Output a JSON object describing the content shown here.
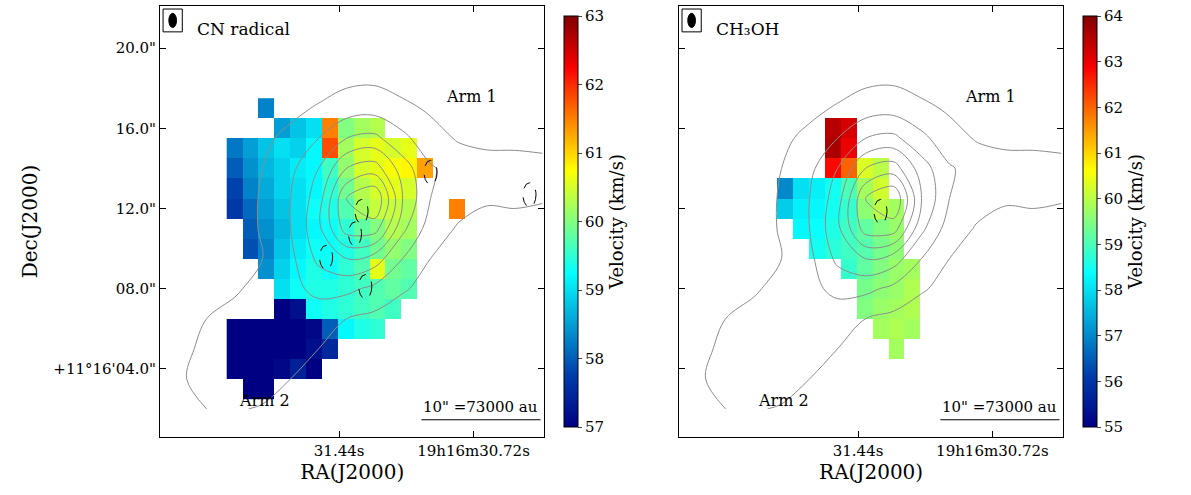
{
  "chart_data": [
    {
      "type": "heatmap",
      "title": "CN radical",
      "xlabel": "RA(J2000)",
      "ylabel": "Dec(J2000)",
      "xlim": [
        32.4,
        30.34
      ],
      "ylim": [
        0.6,
        22.1
      ],
      "xticks": [
        {
          "value": 31.44,
          "label": "31.44s"
        },
        {
          "value": 30.72,
          "label": "19h16m30.72s"
        }
      ],
      "yticks": [
        {
          "value": 4,
          "label": "+11°16'04.0\""
        },
        {
          "value": 8,
          "label": "08.0\""
        },
        {
          "value": 12,
          "label": "12.0\""
        },
        {
          "value": 16,
          "label": "16.0\""
        },
        {
          "value": 20,
          "label": "20.0\""
        }
      ],
      "x": [
        32.0,
        31.915,
        31.83,
        31.745,
        31.66,
        31.575,
        31.49,
        31.405,
        31.32,
        31.235,
        31.15,
        31.065,
        30.98,
        30.895,
        30.81,
        30.725
      ],
      "y": [
        3,
        4,
        5,
        6,
        7,
        8,
        9,
        10,
        11,
        12,
        13,
        14,
        15,
        16,
        17
      ],
      "values": [
        [
          null,
          56.9,
          57.0,
          null,
          null,
          null,
          null,
          null,
          null,
          null,
          null,
          null,
          null,
          null,
          null,
          null
        ],
        [
          56.9,
          56.8,
          56.9,
          57.1,
          57.4,
          57.0,
          null,
          null,
          null,
          null,
          null,
          null,
          null,
          null,
          null,
          null
        ],
        [
          57.0,
          56.9,
          56.8,
          56.8,
          56.9,
          57.2,
          57.5,
          null,
          null,
          null,
          null,
          null,
          null,
          null,
          null,
          null
        ],
        [
          57.0,
          56.9,
          56.8,
          56.9,
          57.0,
          57.1,
          58.0,
          59.2,
          59.4,
          59.5,
          null,
          null,
          null,
          null,
          null,
          null
        ],
        [
          null,
          null,
          null,
          57.0,
          57.2,
          59.3,
          59.4,
          59.5,
          59.6,
          59.7,
          59.6,
          null,
          null,
          null,
          null,
          null
        ],
        [
          null,
          null,
          null,
          59.0,
          59.3,
          59.4,
          59.4,
          59.5,
          59.6,
          59.7,
          59.8,
          59.7,
          null,
          null,
          null,
          null
        ],
        [
          null,
          null,
          58.4,
          58.9,
          59.2,
          59.4,
          59.3,
          59.5,
          59.7,
          60.6,
          59.9,
          59.8,
          null,
          null,
          null,
          null
        ],
        [
          null,
          57.9,
          58.3,
          58.8,
          59.1,
          59.3,
          59.3,
          59.4,
          59.6,
          59.9,
          60.1,
          60.0,
          null,
          null,
          null,
          null
        ],
        [
          null,
          58.0,
          58.4,
          58.7,
          59.0,
          59.2,
          59.3,
          59.5,
          59.8,
          60.0,
          60.3,
          60.2,
          null,
          null,
          null,
          null
        ],
        [
          57.7,
          58.1,
          58.5,
          58.8,
          59.0,
          59.3,
          59.4,
          59.7,
          60.2,
          60.4,
          60.4,
          60.3,
          null,
          null,
          61.5,
          null
        ],
        [
          57.8,
          58.3,
          58.6,
          58.9,
          59.0,
          59.2,
          59.5,
          59.9,
          60.3,
          60.5,
          60.6,
          60.5,
          null,
          null,
          null,
          null
        ],
        [
          58.0,
          58.4,
          58.7,
          58.9,
          59.1,
          59.2,
          59.6,
          60.1,
          60.5,
          60.6,
          60.7,
          60.8,
          61.3,
          null,
          null,
          null
        ],
        [
          58.2,
          58.5,
          58.8,
          59.0,
          58.9,
          59.2,
          61.8,
          60.2,
          60.5,
          60.6,
          60.5,
          60.6,
          null,
          null,
          null,
          null
        ],
        [
          null,
          null,
          null,
          58.5,
          58.8,
          59.0,
          61.5,
          60.0,
          60.2,
          60.3,
          null,
          null,
          null,
          null,
          null,
          null
        ],
        [
          null,
          null,
          58.3,
          null,
          null,
          null,
          null,
          null,
          null,
          null,
          null,
          null,
          null,
          null,
          null,
          null
        ]
      ],
      "colorbar": {
        "title": "Velocity (km/s)",
        "range": [
          57,
          63
        ],
        "ticks": [
          57,
          58,
          59,
          60,
          61,
          62,
          63
        ]
      },
      "cores": [
        {
          "x": 31.32,
          "y": 11.85
        },
        {
          "x": 31.355,
          "y": 10.73
        },
        {
          "x": 31.51,
          "y": 9.56
        },
        {
          "x": 31.3,
          "y": 8.1
        },
        {
          "x": 30.95,
          "y": 13.8
        },
        {
          "x": 30.42,
          "y": 12.68
        }
      ],
      "annotations": [
        "Arm 1",
        "Arm 2"
      ],
      "scale_bar": "10\" =73000 au"
    },
    {
      "type": "heatmap",
      "title": "CH₃OH",
      "xlabel": "RA(J2000)",
      "tick_labels": "x",
      "xlim": [
        32.4,
        30.34
      ],
      "ylim": [
        0.6,
        22.1
      ],
      "xticks": [
        {
          "value": 31.44,
          "label": "31.44s"
        },
        {
          "value": 30.72,
          "label": "19h16m30.72s"
        }
      ],
      "yticks": [
        4,
        8,
        12,
        16,
        20
      ],
      "x": [
        32.0,
        31.915,
        31.83,
        31.745,
        31.66,
        31.575,
        31.49,
        31.405,
        31.32,
        31.235,
        31.15,
        31.065,
        30.98,
        30.895,
        30.81,
        30.725
      ],
      "y": [
        3,
        4,
        5,
        6,
        7,
        8,
        9,
        10,
        11,
        12,
        13,
        14,
        15,
        16,
        17
      ],
      "values": [
        [
          null,
          null,
          null,
          null,
          null,
          null,
          null,
          null,
          null,
          null,
          null,
          null,
          null,
          null,
          null,
          null
        ],
        [
          null,
          null,
          null,
          null,
          null,
          null,
          null,
          null,
          null,
          null,
          null,
          null,
          null,
          null,
          null,
          null
        ],
        [
          null,
          null,
          null,
          null,
          null,
          null,
          null,
          null,
          null,
          59.8,
          null,
          null,
          null,
          null,
          null,
          null
        ],
        [
          null,
          null,
          null,
          null,
          null,
          null,
          null,
          null,
          59.8,
          59.9,
          59.8,
          null,
          null,
          null,
          null,
          null
        ],
        [
          null,
          null,
          null,
          null,
          null,
          null,
          null,
          59.5,
          59.7,
          59.8,
          59.9,
          null,
          null,
          null,
          null,
          null
        ],
        [
          null,
          null,
          null,
          null,
          null,
          null,
          null,
          59.4,
          59.6,
          59.7,
          59.9,
          null,
          null,
          null,
          null,
          null
        ],
        [
          null,
          null,
          null,
          null,
          null,
          null,
          58.8,
          59.2,
          59.5,
          59.7,
          59.8,
          null,
          null,
          null,
          null,
          null
        ],
        [
          null,
          null,
          null,
          null,
          58.5,
          58.7,
          58.9,
          59.1,
          59.4,
          59.6,
          null,
          null,
          null,
          null,
          null,
          null
        ],
        [
          null,
          null,
          null,
          58.3,
          58.4,
          58.6,
          58.9,
          59.2,
          59.5,
          59.7,
          null,
          null,
          null,
          null,
          null,
          null
        ],
        [
          null,
          null,
          57.8,
          58.2,
          58.3,
          58.5,
          58.8,
          59.6,
          60.0,
          59.8,
          null,
          null,
          null,
          null,
          null,
          null
        ],
        [
          null,
          null,
          57.0,
          58.0,
          58.2,
          58.5,
          59.0,
          59.8,
          60.2,
          null,
          null,
          null,
          null,
          null,
          null,
          null
        ],
        [
          null,
          null,
          null,
          null,
          null,
          62.8,
          62.0,
          60.3,
          60.0,
          null,
          null,
          null,
          null,
          null,
          null,
          null
        ],
        [
          null,
          null,
          null,
          null,
          null,
          63.6,
          63.0,
          null,
          null,
          null,
          null,
          null,
          null,
          null,
          null,
          null
        ],
        [
          null,
          null,
          null,
          null,
          null,
          63.5,
          63.2,
          null,
          null,
          null,
          null,
          null,
          null,
          null,
          null,
          null
        ],
        [
          null,
          null,
          null,
          null,
          null,
          null,
          null,
          null,
          null,
          null,
          null,
          null,
          null,
          null,
          null,
          null
        ]
      ],
      "colorbar": {
        "title": "Velocity (km/s)",
        "range": [
          55,
          64
        ],
        "ticks": [
          55,
          56,
          57,
          58,
          59,
          60,
          61,
          62,
          63,
          64
        ]
      },
      "cores": [
        {
          "x": 31.32,
          "y": 11.85
        }
      ],
      "annotations": [
        "Arm 1",
        "Arm 2"
      ],
      "scale_bar": "10\" =73000 au"
    }
  ],
  "continuum_contours": {
    "x": [
      32.3,
      32.15,
      32.0,
      31.85,
      31.7,
      31.55,
      31.4,
      31.25,
      31.1,
      30.95,
      30.8,
      30.65,
      30.5,
      30.35
    ],
    "y": [
      2,
      3.5,
      5,
      6.5,
      8,
      9.5,
      11,
      12.5,
      14,
      15.5,
      17,
      18.5,
      20,
      21.5
    ],
    "values": [
      [
        0.6,
        1,
        1.2,
        0.8,
        0.3,
        0,
        0,
        0,
        0,
        0,
        0,
        0,
        0,
        0
      ],
      [
        0.8,
        1.5,
        2.2,
        2,
        1,
        0,
        0,
        0,
        0,
        0,
        0,
        0,
        0,
        0
      ],
      [
        0,
        1.8,
        2,
        2.5,
        2.2,
        1,
        0.4,
        0,
        0,
        0,
        0,
        0,
        0,
        0
      ],
      [
        0,
        1,
        1.5,
        1.8,
        2.5,
        2,
        1,
        0.5,
        0,
        0,
        0,
        0,
        0,
        0
      ],
      [
        0,
        0,
        0.8,
        1.5,
        2.5,
        3.5,
        3.5,
        2.5,
        1.2,
        0.4,
        0,
        0,
        0,
        0
      ],
      [
        0,
        0,
        0,
        1,
        2.5,
        5.5,
        7,
        6,
        3,
        1,
        0,
        0,
        0,
        0
      ],
      [
        0,
        0,
        0,
        1.2,
        3,
        6.5,
        12,
        12,
        5.5,
        2,
        0.8,
        0.4,
        0,
        0
      ],
      [
        0,
        0,
        0,
        1.2,
        3,
        6,
        13,
        15,
        7,
        3,
        1.8,
        1.2,
        1.5,
        1.2
      ],
      [
        0,
        0,
        0,
        1,
        2.5,
        5,
        9,
        10,
        6,
        3.2,
        2.2,
        1.8,
        2.5,
        2
      ],
      [
        0,
        0,
        0,
        0.6,
        1.5,
        3,
        5,
        5.5,
        3.5,
        1.8,
        0.8,
        0.5,
        0,
        0
      ],
      [
        0,
        0,
        0,
        0,
        0.5,
        1.2,
        2,
        2.2,
        1.5,
        0.7,
        0,
        0,
        0,
        0
      ],
      [
        0,
        0,
        0,
        0,
        0,
        0,
        0.5,
        0.6,
        0,
        0,
        0,
        0,
        0,
        0
      ],
      [
        0,
        0,
        0,
        0,
        0,
        0,
        0,
        0,
        0,
        0,
        0,
        0,
        0,
        0
      ],
      [
        0,
        0,
        0,
        0,
        0,
        0,
        0,
        0,
        0,
        0,
        0,
        0,
        0,
        0
      ]
    ],
    "levels": {
      "start": 1,
      "end": 13,
      "size": 2
    }
  }
}
